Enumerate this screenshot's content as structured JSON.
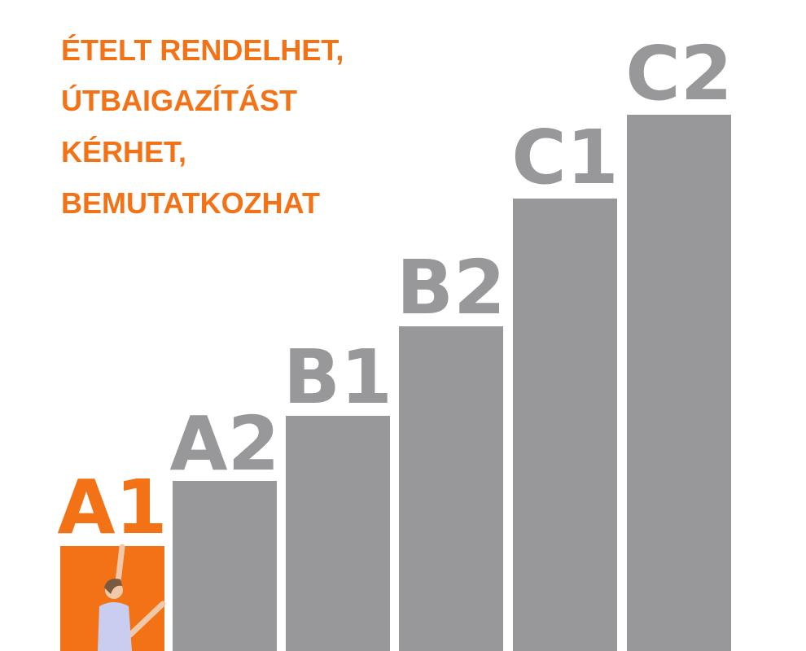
{
  "heading": {
    "lines": [
      "ÉTELT RENDELHET,",
      "ÚTBAIGAZÍTÁST",
      "KÉRHET,",
      "BEMUTATKOZHAT"
    ]
  },
  "levels": [
    {
      "label": "A1"
    },
    {
      "label": "A2"
    },
    {
      "label": "B1"
    },
    {
      "label": "B2"
    },
    {
      "label": "C1"
    },
    {
      "label": "C2"
    }
  ]
}
